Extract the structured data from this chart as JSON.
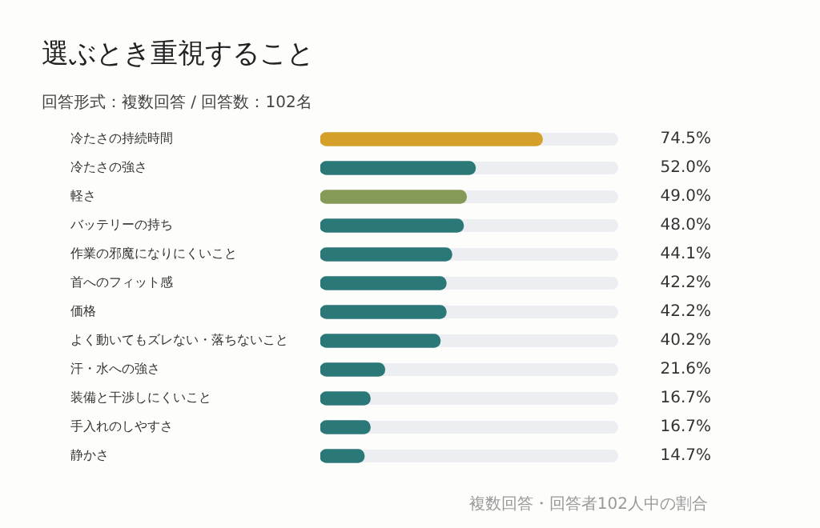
{
  "chart_data": {
    "type": "bar",
    "orientation": "horizontal",
    "title": "選ぶとき重視すること",
    "subtitle": "回答形式：複数回答 / 回答数：102名",
    "categories": [
      "冷たさの持続時間",
      "冷たさの強さ",
      "軽さ",
      "バッテリーの持ち",
      "作業の邪魔になりにくいこと",
      "首へのフィット感",
      "価格",
      "よく動いてもズレない・落ちないこと",
      "汗・水への強さ",
      "装備と干渉しにくいこと",
      "手入れのしやすさ",
      "静かさ"
    ],
    "values": [
      74.5,
      52.0,
      49.0,
      48.0,
      44.1,
      42.2,
      42.2,
      40.2,
      21.6,
      16.7,
      16.7,
      14.7
    ],
    "value_labels": [
      "74.5%",
      "52.0%",
      "49.0%",
      "48.0%",
      "44.1%",
      "42.2%",
      "42.2%",
      "40.2%",
      "21.6%",
      "16.7%",
      "16.7%",
      "14.7%"
    ],
    "colors": [
      "#d4a02a",
      "#2a7878",
      "#869a58",
      "#2a7878",
      "#2a7878",
      "#2a7878",
      "#2a7878",
      "#2a7878",
      "#2a7878",
      "#2a7878",
      "#2a7878",
      "#2a7878"
    ],
    "xlim": [
      0,
      100
    ],
    "tick_labels": "y",
    "grid": false,
    "legend": false,
    "annotations": [
      "複数回答・回答者102人中の割合"
    ]
  }
}
